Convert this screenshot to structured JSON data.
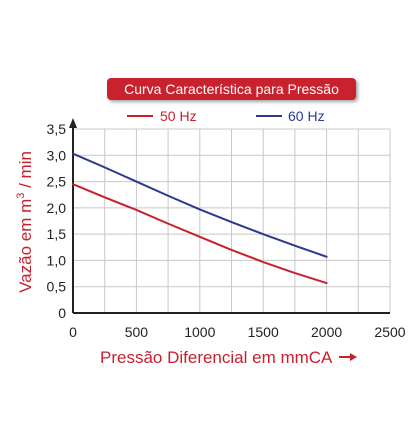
{
  "chart_data": {
    "type": "line",
    "title": "Curva Característica para Pressão",
    "xlabel": "Pressão Diferencial em mmCA",
    "ylabel": "Vazão em m",
    "ylabel_superscript": "3",
    "ylabel_suffix": " / min",
    "xlim": [
      0,
      2500
    ],
    "ylim": [
      0,
      3.5
    ],
    "x_ticks": [
      0,
      500,
      1000,
      1500,
      2000,
      2500
    ],
    "x_tick_labels": [
      "0",
      "500",
      "1000",
      "1500",
      "2000",
      "2500"
    ],
    "y_ticks": [
      0,
      0.5,
      1,
      1.5,
      2,
      2.5,
      3,
      3.5
    ],
    "y_tick_labels": [
      "0",
      "0,5",
      "1,0",
      "1,5",
      "2,0",
      "2,5",
      "3,0",
      "3,5"
    ],
    "grid": true,
    "legend_position": "top",
    "series": [
      {
        "name": "50 Hz",
        "color": "#c8202f",
        "x": [
          0,
          250,
          500,
          750,
          1000,
          1250,
          1500,
          1750,
          2000
        ],
        "y": [
          2.45,
          2.2,
          1.96,
          1.7,
          1.45,
          1.2,
          0.97,
          0.76,
          0.57
        ]
      },
      {
        "name": "60 Hz",
        "color": "#2b3990",
        "x": [
          0,
          250,
          500,
          750,
          1000,
          1250,
          1500,
          1750,
          2000
        ],
        "y": [
          3.03,
          2.77,
          2.5,
          2.23,
          1.97,
          1.73,
          1.5,
          1.28,
          1.07
        ]
      }
    ],
    "colors": {
      "title_banner": "#c8202f",
      "title_text": "#ffffff",
      "xlabel": "#c8202f",
      "ylabel": "#c8202f",
      "axis": "#222222",
      "grid": "#c8c8c8",
      "tick_text": "#222222"
    },
    "icons": [
      "right-arrow-icon",
      "up-arrow-icon"
    ]
  }
}
